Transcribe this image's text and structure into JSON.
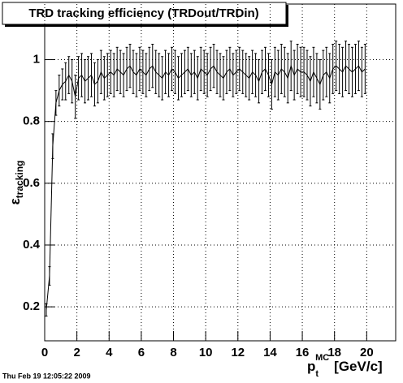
{
  "chart_data": {
    "type": "line",
    "title": "TRD tracking efficiency (TRDout/TRDin)",
    "x_label": {
      "symbol": "p",
      "subscript": "t",
      "superscript": "MC",
      "unit": "[GeV/c]"
    },
    "y_label": {
      "symbol": "ε",
      "subscript": "tracking"
    },
    "timestamp": "Thu Feb 19 12:05:22 2009",
    "xlim": [
      0,
      21.8
    ],
    "ylim": [
      0.09,
      1.18
    ],
    "xticks": [
      0,
      2,
      4,
      6,
      8,
      10,
      12,
      14,
      16,
      18,
      20
    ],
    "yticks": [
      0.2,
      0.4,
      0.6,
      0.8,
      1
    ],
    "grid": true,
    "x": [
      0.1,
      0.3,
      0.5,
      0.7,
      0.9,
      1.1,
      1.3,
      1.5,
      1.7,
      1.9,
      2.1,
      2.3,
      2.5,
      2.7,
      2.9,
      3.1,
      3.3,
      3.5,
      3.7,
      3.9,
      4.1,
      4.3,
      4.5,
      4.7,
      4.9,
      5.1,
      5.3,
      5.5,
      5.7,
      5.9,
      6.1,
      6.3,
      6.5,
      6.7,
      6.9,
      7.1,
      7.3,
      7.5,
      7.7,
      7.9,
      8.1,
      8.3,
      8.5,
      8.7,
      8.9,
      9.1,
      9.3,
      9.5,
      9.7,
      9.9,
      10.1,
      10.3,
      10.5,
      10.7,
      10.9,
      11.1,
      11.3,
      11.5,
      11.7,
      11.9,
      12.1,
      12.3,
      12.5,
      12.7,
      12.9,
      13.1,
      13.3,
      13.5,
      13.7,
      13.9,
      14.1,
      14.3,
      14.5,
      14.7,
      14.9,
      15.1,
      15.3,
      15.5,
      15.7,
      15.9,
      16.1,
      16.3,
      16.5,
      16.7,
      16.9,
      17.1,
      17.3,
      17.5,
      17.7,
      17.9,
      18.1,
      18.3,
      18.5,
      18.7,
      18.9,
      19.1,
      19.3,
      19.5,
      19.7,
      19.9
    ],
    "series": [
      {
        "color": "#000000",
        "values": [
          0.19,
          0.3,
          0.72,
          0.86,
          0.9,
          0.92,
          0.93,
          0.95,
          0.93,
          0.88,
          0.94,
          0.95,
          0.93,
          0.94,
          0.95,
          0.92,
          0.93,
          0.96,
          0.94,
          0.95,
          0.96,
          0.95,
          0.97,
          0.96,
          0.95,
          0.97,
          0.98,
          0.96,
          0.95,
          0.97,
          0.96,
          0.95,
          0.97,
          0.98,
          0.96,
          0.95,
          0.94,
          0.96,
          0.95,
          0.97,
          0.96,
          0.94,
          0.95,
          0.96,
          0.97,
          0.95,
          0.96,
          0.94,
          0.97,
          0.96,
          0.95,
          0.97,
          0.98,
          0.96,
          0.95,
          0.94,
          0.96,
          0.97,
          0.95,
          0.96,
          0.97,
          0.96,
          0.95,
          0.94,
          0.96,
          0.95,
          0.93,
          0.96,
          0.97,
          0.95,
          0.92,
          0.96,
          0.95,
          0.97,
          0.96,
          0.94,
          0.98,
          0.95,
          0.97,
          0.96,
          0.96,
          0.95,
          0.93,
          0.96,
          0.94,
          0.92,
          0.95,
          0.96,
          0.94,
          0.97,
          0.98,
          0.97,
          0.96,
          0.98,
          0.97,
          0.96,
          0.97,
          0.98,
          0.96,
          0.97
        ],
        "errors": [
          0.02,
          0.03,
          0.04,
          0.04,
          0.05,
          0.05,
          0.06,
          0.06,
          0.07,
          0.07,
          0.07,
          0.07,
          0.07,
          0.07,
          0.07,
          0.07,
          0.07,
          0.07,
          0.07,
          0.07,
          0.07,
          0.07,
          0.07,
          0.07,
          0.07,
          0.07,
          0.07,
          0.07,
          0.07,
          0.07,
          0.07,
          0.07,
          0.07,
          0.07,
          0.07,
          0.07,
          0.07,
          0.07,
          0.07,
          0.07,
          0.07,
          0.07,
          0.07,
          0.07,
          0.07,
          0.07,
          0.07,
          0.07,
          0.07,
          0.07,
          0.07,
          0.07,
          0.07,
          0.07,
          0.07,
          0.07,
          0.07,
          0.07,
          0.07,
          0.07,
          0.07,
          0.07,
          0.07,
          0.07,
          0.07,
          0.07,
          0.07,
          0.07,
          0.07,
          0.07,
          0.08,
          0.08,
          0.08,
          0.08,
          0.08,
          0.08,
          0.08,
          0.08,
          0.08,
          0.08,
          0.08,
          0.08,
          0.08,
          0.08,
          0.08,
          0.08,
          0.08,
          0.08,
          0.08,
          0.08,
          0.08,
          0.08,
          0.08,
          0.08,
          0.08,
          0.08,
          0.08,
          0.08,
          0.08,
          0.08
        ]
      }
    ]
  }
}
